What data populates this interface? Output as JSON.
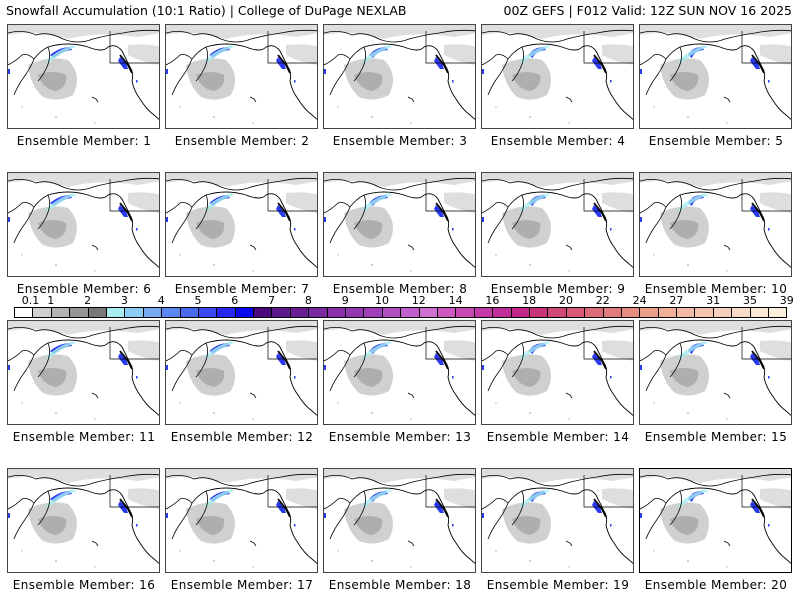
{
  "header": {
    "title_left": "Snowfall Accumulation (10:1 Ratio) | College of DuPage NEXLAB",
    "title_right": "00Z GEFS | F012 Valid: 12Z SUN NOV 16 2025"
  },
  "panels": [
    {
      "label": "Ensemble Member: 1"
    },
    {
      "label": "Ensemble Member: 2"
    },
    {
      "label": "Ensemble Member: 3"
    },
    {
      "label": "Ensemble Member: 4"
    },
    {
      "label": "Ensemble Member: 5"
    },
    {
      "label": "Ensemble Member: 6"
    },
    {
      "label": "Ensemble Member: 7"
    },
    {
      "label": "Ensemble Member: 8"
    },
    {
      "label": "Ensemble Member: 9"
    },
    {
      "label": "Ensemble Member: 10"
    },
    {
      "label": "Ensemble Member: 11"
    },
    {
      "label": "Ensemble Member: 12"
    },
    {
      "label": "Ensemble Member: 13"
    },
    {
      "label": "Ensemble Member: 14"
    },
    {
      "label": "Ensemble Member: 15"
    },
    {
      "label": "Ensemble Member: 16"
    },
    {
      "label": "Ensemble Member: 17"
    },
    {
      "label": "Ensemble Member: 18"
    },
    {
      "label": "Ensemble Member: 19"
    },
    {
      "label": "Ensemble Member: 20",
      "highlighted": true
    }
  ],
  "colorbar": {
    "tick_labels": [
      "0.1",
      "1",
      "2",
      "3",
      "4",
      "5",
      "6",
      "7",
      "8",
      "9",
      "10",
      "12",
      "14",
      "16",
      "18",
      "20",
      "22",
      "24",
      "27",
      "31",
      "35",
      "39"
    ],
    "colors": [
      "#ffffff",
      "#d0d0d0",
      "#b4b4b4",
      "#969696",
      "#787878",
      "#a8eef0",
      "#8ccdf5",
      "#78aaf0",
      "#5a87f0",
      "#4a6af0",
      "#3a4af0",
      "#2828f0",
      "#0a0aec",
      "#4a0a7e",
      "#5a1a8c",
      "#6a1e96",
      "#7a28a0",
      "#8a30aa",
      "#9438b0",
      "#a040b8",
      "#b050c0",
      "#c060cc",
      "#d070d0",
      "#cc58c0",
      "#c848b4",
      "#c43aa8",
      "#c02e9a",
      "#c02888",
      "#c83478",
      "#d04878",
      "#d85a78",
      "#dc6c78",
      "#e07c7c",
      "#e68c80",
      "#eca08c",
      "#f0b098",
      "#f2baa4",
      "#f4c4b0",
      "#f6d0bc",
      "#f8dcc8",
      "#fae8d4",
      "#fcf0dc"
    ]
  },
  "map": {
    "land_outline_color": "#000000",
    "light_snow_color": "#c8c8c8",
    "moderate_snow_color": "#a0a0a0",
    "heavy_snow_color": "#2a3af0",
    "trace_color": "#a8eef0"
  }
}
